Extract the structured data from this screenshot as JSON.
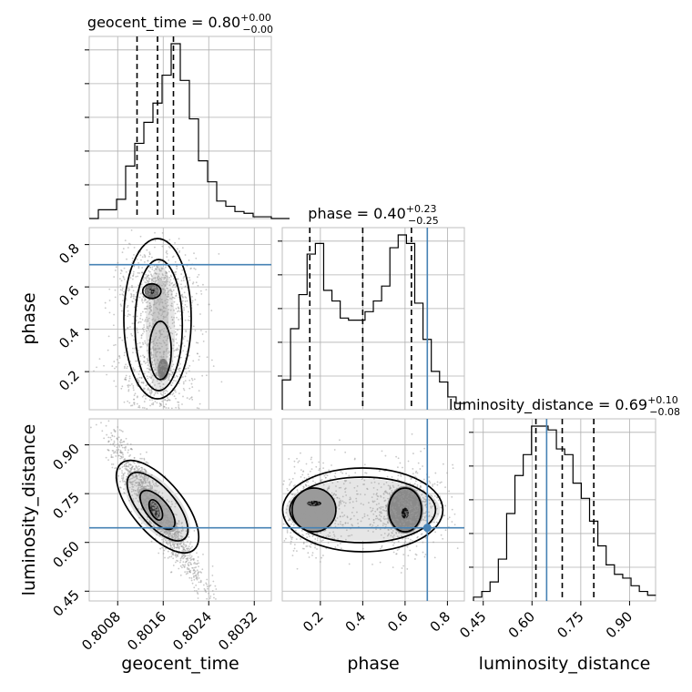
{
  "chart_data": {
    "type": "corner",
    "parameters": [
      "geocent_time",
      "phase",
      "luminosity_distance"
    ],
    "axis_labels": [
      "geocent_time",
      "phase",
      "luminosity_distance"
    ],
    "ranges": {
      "geocent_time": [
        0.8003,
        0.8035
      ],
      "phase": [
        0.02,
        0.88
      ],
      "luminosity_distance": [
        0.42,
        0.98
      ]
    },
    "ticks": {
      "geocent_time": [
        "0.8008",
        "0.8016",
        "0.8024",
        "0.8032"
      ],
      "phase": [
        "0.2",
        "0.4",
        "0.6",
        "0.8"
      ],
      "luminosity_distance": [
        "0.45",
        "0.60",
        "0.75",
        "0.90"
      ]
    },
    "truths": {
      "phase": 0.705,
      "luminosity_distance": 0.645
    },
    "truth_color": "#4682b4",
    "titles": [
      {
        "text": "geocent_time = 0.80",
        "sup": "+0.00",
        "sub": "−0.00"
      },
      {
        "text": "phase = 0.40",
        "sup": "+0.23",
        "sub": "−0.25"
      },
      {
        "text": "luminosity_distance = 0.69",
        "sup": "+0.10",
        "sub": "−0.08"
      }
    ],
    "quantiles": {
      "geocent_time": [
        0.80114,
        0.8015,
        0.80178
      ],
      "phase": [
        0.15,
        0.4,
        0.63
      ],
      "luminosity_distance": [
        0.612,
        0.693,
        0.79
      ]
    },
    "histograms": {
      "geocent_time": {
        "edges_start": 0.8003,
        "bin_width": 0.00016,
        "counts": [
          0,
          5,
          5,
          11,
          30,
          43,
          55,
          66,
          82,
          100,
          79,
          57,
          33,
          21,
          10,
          7,
          4,
          3,
          1,
          1,
          0,
          0
        ]
      },
      "phase": {
        "edges_start": 0.02,
        "bin_width": 0.0391,
        "counts": [
          14,
          38,
          54,
          73,
          78,
          56,
          51,
          43,
          42,
          42,
          46,
          51,
          58,
          76,
          82,
          78,
          50,
          33,
          18,
          13,
          6,
          3
        ]
      },
      "luminosity_distance": {
        "edges_start": 0.42,
        "bin_width": 0.0255,
        "counts": [
          2,
          5,
          10,
          22,
          46,
          66,
          77,
          92,
          92,
          90,
          80,
          77,
          62,
          54,
          42,
          29,
          19,
          14,
          12,
          8,
          5,
          3
        ]
      }
    },
    "contour_levels": [
      "0.5σ",
      "1σ",
      "1.5σ",
      "2σ"
    ],
    "grid": true,
    "legend": "none"
  }
}
